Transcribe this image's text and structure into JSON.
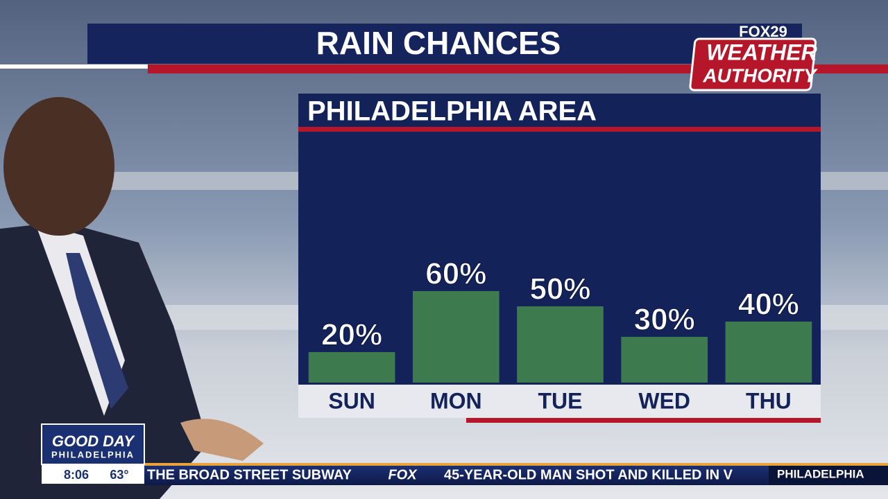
{
  "chart_data": {
    "type": "bar",
    "title": "RAIN CHANCES",
    "subtitle": "PHILADELPHIA AREA",
    "categories": [
      "SUN",
      "MON",
      "TUE",
      "WED",
      "THU"
    ],
    "values": [
      20,
      60,
      50,
      30,
      40
    ],
    "value_labels": [
      "20%",
      "60%",
      "50%",
      "30%",
      "40%"
    ],
    "color": "#3d7a4e",
    "ylim": [
      0,
      100
    ]
  },
  "branding": {
    "network": "FOX29",
    "line1": "WEATHER",
    "line2": "AUTHORITY",
    "show": "GOOD DAY",
    "city": "PHILADELPHIA",
    "time": "8:06",
    "temperature": "63°"
  },
  "ticker": {
    "left": "THE BROAD STREET SUBWAY",
    "logo": "FOX",
    "right": "45-YEAR-OLD MAN SHOT AND KILLED IN V",
    "location": "PHILADELPHIA"
  }
}
